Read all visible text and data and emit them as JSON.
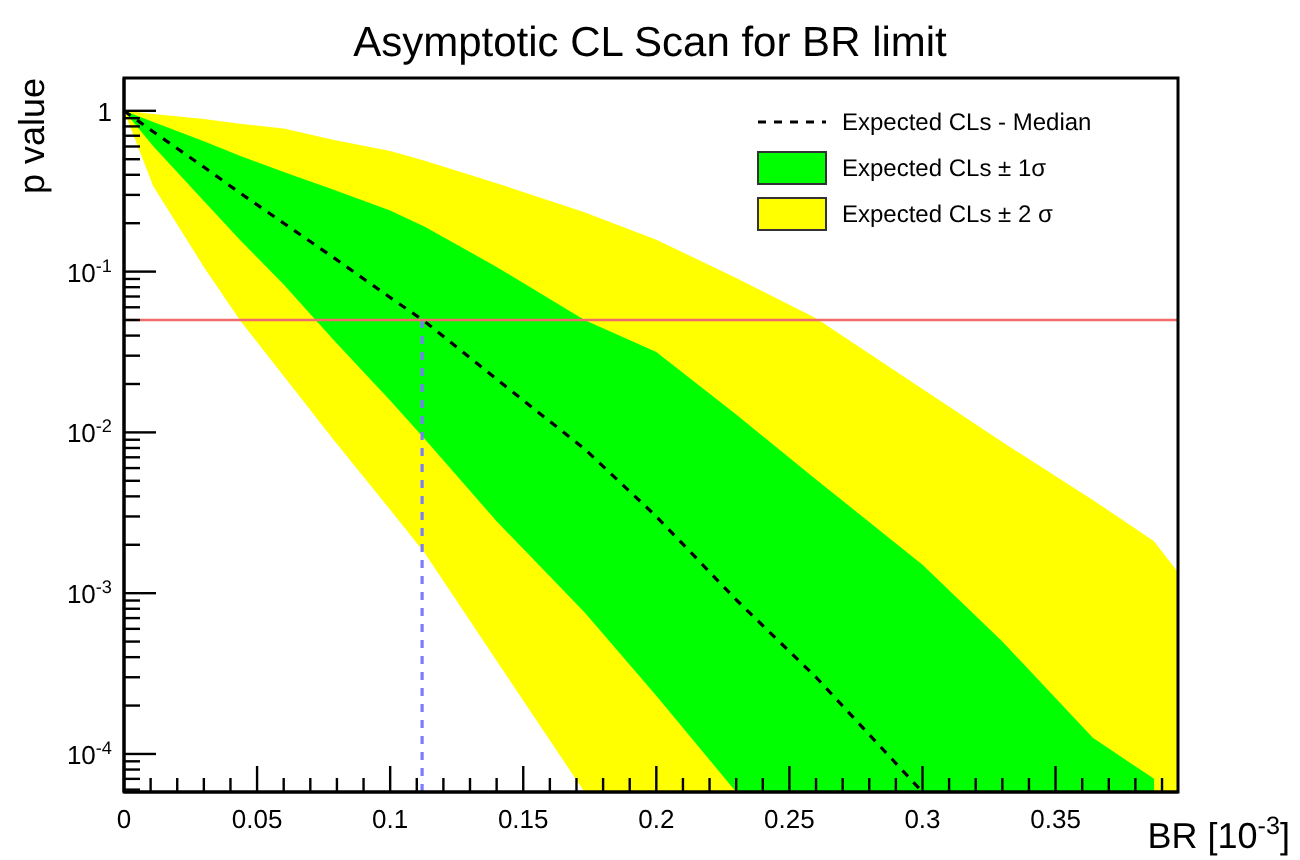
{
  "chart_data": {
    "type": "line",
    "title": "Asymptotic CL Scan for BR limit",
    "xlabel": "BR  [10$^{-3}$]",
    "ylabel": "p  value",
    "log": "y",
    "legend": "top right",
    "grid": false,
    "xlim": [
      0,
      0.396
    ],
    "ylim": [
      5.8e-05,
      1.6
    ],
    "xticks": [
      0,
      {
        "value": 0.01,
        "label": null
      },
      {
        "value": 0.02,
        "label": null
      },
      {
        "value": 0.03,
        "label": null
      },
      {
        "value": 0.04,
        "label": null
      },
      0.05,
      {
        "value": 0.06,
        "label": null
      },
      {
        "value": 0.07,
        "label": null
      },
      {
        "value": 0.08,
        "label": null
      },
      {
        "value": 0.09,
        "label": null
      },
      0.1,
      {
        "value": 0.11,
        "label": null
      },
      {
        "value": 0.12,
        "label": null
      },
      {
        "value": 0.13,
        "label": null
      },
      {
        "value": 0.14,
        "label": null
      },
      0.15,
      {
        "value": 0.16,
        "label": null
      },
      {
        "value": 0.17,
        "label": null
      },
      {
        "value": 0.18,
        "label": null
      },
      {
        "value": 0.19,
        "label": null
      },
      0.2,
      {
        "value": 0.21,
        "label": null
      },
      {
        "value": 0.22,
        "label": null
      },
      {
        "value": 0.23,
        "label": null
      },
      {
        "value": 0.24,
        "label": null
      },
      0.25,
      {
        "value": 0.26,
        "label": null
      },
      {
        "value": 0.27,
        "label": null
      },
      {
        "value": 0.28,
        "label": null
      },
      {
        "value": 0.29,
        "label": null
      },
      0.3,
      {
        "value": 0.31,
        "label": null
      },
      {
        "value": 0.32,
        "label": null
      },
      {
        "value": 0.33,
        "label": null
      },
      {
        "value": 0.34,
        "label": null
      },
      0.35,
      {
        "value": 0.36,
        "label": null
      },
      {
        "value": 0.37,
        "label": null
      },
      {
        "value": 0.38,
        "label": null
      },
      {
        "value": 0.39,
        "label": null
      }
    ],
    "yticks": [
      {
        "value": 6e-05,
        "label": null
      },
      {
        "value": 7e-05,
        "label": null
      },
      {
        "value": 8e-05,
        "label": null
      },
      {
        "value": 9e-05,
        "label": null
      },
      {
        "value": 0.0001,
        "label": "10$^{-4}$"
      },
      {
        "value": 0.0002,
        "label": null
      },
      {
        "value": 0.0003,
        "label": null
      },
      {
        "value": 0.0004,
        "label": null
      },
      {
        "value": 0.0005,
        "label": null
      },
      {
        "value": 0.0006,
        "label": null
      },
      {
        "value": 0.0007,
        "label": null
      },
      {
        "value": 0.0008,
        "label": null
      },
      {
        "value": 0.0009,
        "label": null
      },
      {
        "value": 0.001,
        "label": "10$^{-3}$"
      },
      {
        "value": 0.002,
        "label": null
      },
      {
        "value": 0.003,
        "label": null
      },
      {
        "value": 0.004,
        "label": null
      },
      {
        "value": 0.005,
        "label": null
      },
      {
        "value": 0.006,
        "label": null
      },
      {
        "value": 0.007,
        "label": null
      },
      {
        "value": 0.008,
        "label": null
      },
      {
        "value": 0.009,
        "label": null
      },
      {
        "value": 0.01,
        "label": "10$^{-2}$"
      },
      {
        "value": 0.02,
        "label": null
      },
      {
        "value": 0.03,
        "label": null
      },
      {
        "value": 0.04,
        "label": null
      },
      {
        "value": 0.05,
        "label": null
      },
      {
        "value": 0.06,
        "label": null
      },
      {
        "value": 0.07,
        "label": null
      },
      {
        "value": 0.08,
        "label": null
      },
      {
        "value": 0.09,
        "label": null
      },
      {
        "value": 0.1,
        "label": "10$^{-1}$"
      },
      {
        "value": 0.2,
        "label": null
      },
      {
        "value": 0.3,
        "label": null
      },
      {
        "value": 0.4,
        "label": null
      },
      {
        "value": 0.5,
        "label": null
      },
      {
        "value": 0.6,
        "label": null
      },
      {
        "value": 0.7,
        "label": null
      },
      {
        "value": 0.8,
        "label": null
      },
      {
        "value": 0.9,
        "label": null
      },
      1
    ],
    "x": [
      0,
      0.011,
      0.03,
      0.0435,
      0.06,
      0.0785,
      0.1,
      0.113,
      0.14,
      0.173,
      0.2,
      0.23,
      0.26,
      0.3,
      0.33,
      0.364,
      0.387,
      0.396
    ],
    "series": [
      {
        "name": "Expected CLs ± 2 σ",
        "color": "#ffff00",
        "values": [
          null,
          null,
          null,
          null,
          null,
          null,
          null,
          null,
          null,
          null,
          null,
          null,
          null,
          null,
          null,
          null,
          null,
          null
        ],
        "lower": [
          1,
          0.339,
          0.107,
          0.05,
          0.0224,
          0.0091,
          0.0033,
          0.00178,
          0.00038,
          5.8e-05,
          5.8e-05,
          5.8e-05,
          5.8e-05,
          5.8e-05,
          5.8e-05,
          5.8e-05,
          5.8e-05,
          5.8e-05
        ],
        "upper": [
          1,
          0.955,
          0.891,
          0.832,
          0.776,
          0.661,
          0.562,
          0.49,
          0.355,
          0.234,
          0.158,
          0.0912,
          0.0513,
          0.0186,
          0.0087,
          0.0038,
          0.0021,
          0.00135
        ]
      },
      {
        "name": "Expected CLs ± 1σ",
        "color": "#00ff00",
        "values": [
          null,
          null,
          null,
          null,
          null,
          null,
          null,
          null,
          null,
          null,
          null,
          null,
          null,
          null,
          null,
          null,
          null,
          null
        ],
        "lower": [
          1,
          0.603,
          0.275,
          0.158,
          0.083,
          0.038,
          0.0158,
          0.0091,
          0.0028,
          0.00076,
          0.00023,
          5.8e-05,
          5.8e-05,
          5.8e-05,
          5.8e-05,
          5.8e-05,
          5.8e-05,
          null
        ],
        "upper": [
          1,
          0.851,
          0.646,
          0.525,
          0.417,
          0.324,
          0.24,
          0.19,
          0.107,
          0.05,
          0.0316,
          0.0129,
          0.0051,
          0.0015,
          0.0005,
          0.000126,
          7e-05,
          null
        ]
      },
      {
        "name": "Expected CLs - Median",
        "color": "#000000",
        "line_style": "dashed",
        "x": [
          0,
          0.011,
          0.03,
          0.0435,
          0.06,
          0.0785,
          0.1,
          0.113,
          0.14,
          0.173,
          0.2,
          0.23,
          0.26,
          0.3
        ],
        "values": [
          1,
          0.741,
          0.447,
          0.309,
          0.2,
          0.123,
          0.069,
          0.049,
          0.0214,
          0.0079,
          0.003,
          0.00091,
          0.0003,
          5.8e-05
        ]
      },
      {
        "type": "line",
        "color": "#7b7bff",
        "line_style": "dashed",
        "x": [
          0.112,
          0.112
        ],
        "values": [
          5.8e-05,
          0.05
        ]
      }
    ],
    "ref_lines": [
      {
        "axis": "y",
        "value": 0.05,
        "color": "#f26b6b"
      }
    ]
  }
}
